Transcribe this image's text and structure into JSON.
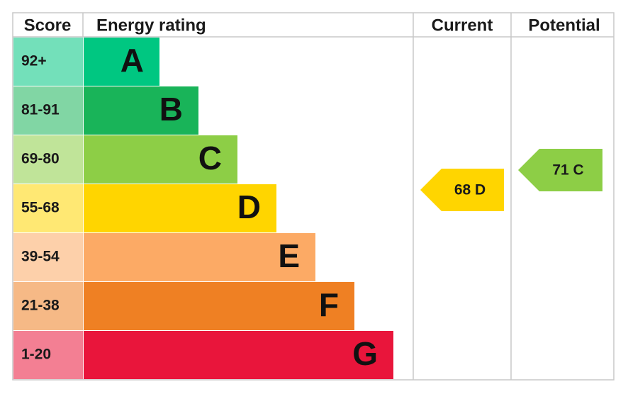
{
  "header": {
    "score": "Score",
    "rating": "Energy rating",
    "current": "Current",
    "potential": "Potential"
  },
  "bands": [
    {
      "score": "92+",
      "letter": "A",
      "color": "#00c781"
    },
    {
      "score": "81-91",
      "letter": "B",
      "color": "#19b459"
    },
    {
      "score": "69-80",
      "letter": "C",
      "color": "#8dce46"
    },
    {
      "score": "55-68",
      "letter": "D",
      "color": "#ffd500"
    },
    {
      "score": "39-54",
      "letter": "E",
      "color": "#fcaa65"
    },
    {
      "score": "21-38",
      "letter": "F",
      "color": "#ef8023"
    },
    {
      "score": "1-20",
      "letter": "G",
      "color": "#e9153b"
    }
  ],
  "current": {
    "label": "68 D",
    "color": "#ffd500"
  },
  "potential": {
    "label": "71 C",
    "color": "#8dce46"
  }
}
